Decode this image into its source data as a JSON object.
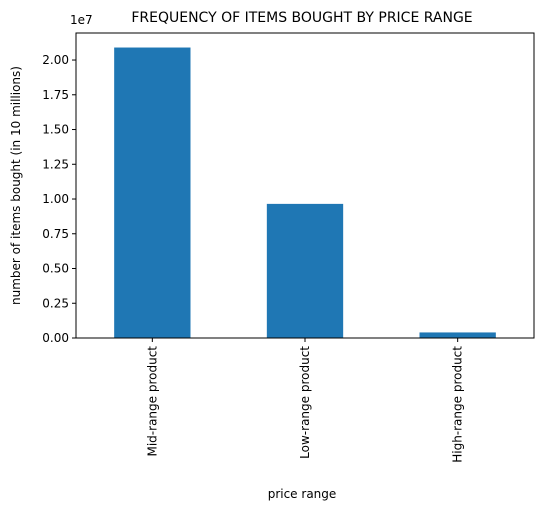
{
  "chart_data": {
    "type": "bar",
    "title": "FREQUENCY OF ITEMS BOUGHT BY PRICE RANGE",
    "xlabel": "price range",
    "ylabel": "number of items bought (in 10 millions)",
    "y_offset_label": "1e7",
    "categories": [
      "Mid-range product",
      "Low-range product",
      "High-range product"
    ],
    "values": [
      20900000,
      9650000,
      400000
    ],
    "ylim": [
      0,
      21945000
    ],
    "yticks": [
      0,
      2500000,
      5000000,
      7500000,
      10000000,
      12500000,
      15000000,
      17500000,
      20000000
    ],
    "ytick_labels": [
      "0.00",
      "0.25",
      "0.50",
      "0.75",
      "1.00",
      "1.25",
      "1.50",
      "1.75",
      "2.00"
    ],
    "bar_color": "#1f77b4",
    "grid": false,
    "legend": "none"
  }
}
